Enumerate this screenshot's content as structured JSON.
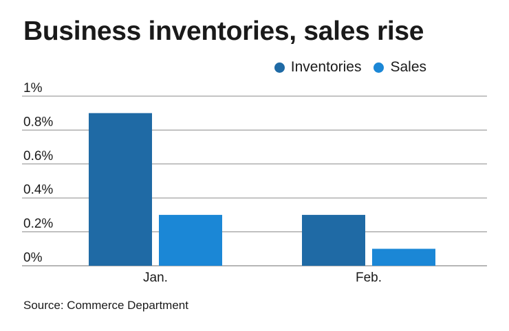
{
  "title": "Business inventories, sales rise",
  "source": "Source: Commerce Department",
  "colors": {
    "inventories": "#1f6aa5",
    "sales": "#1b87d6",
    "grid": "#8a8a8a"
  },
  "chart_data": {
    "type": "bar",
    "categories": [
      "Jan.",
      "Feb."
    ],
    "series": [
      {
        "name": "Inventories",
        "values": [
          0.9,
          0.3
        ]
      },
      {
        "name": "Sales",
        "values": [
          0.3,
          0.1
        ]
      }
    ],
    "yticks": [
      "0%",
      "0.2%",
      "0.4%",
      "0.6%",
      "0.8%",
      "1%"
    ],
    "ylim": [
      0,
      1
    ],
    "grid": true,
    "legend": "top-right"
  }
}
